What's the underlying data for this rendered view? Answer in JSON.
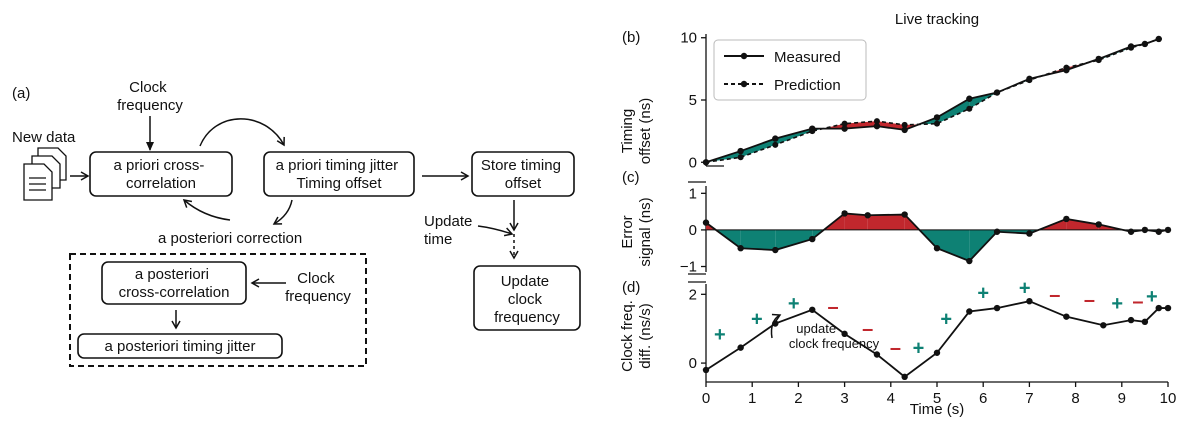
{
  "diagram": {
    "panel_label": "(a)",
    "new_data_label": "New data",
    "clock_frequency_top": [
      "Clock",
      "frequency"
    ],
    "a_priori_cross": [
      "a priori cross-",
      "correlation"
    ],
    "a_priori_jitter": [
      "a priori timing jitter",
      "Timing offset"
    ],
    "store_timing": [
      "Store timing",
      "offset"
    ],
    "a_posteriori_correction": "a posteriori correction",
    "update_time": [
      "Update",
      "time"
    ],
    "update_clock": [
      "Update",
      "clock",
      "frequency"
    ],
    "a_posteriori_cross": [
      "a posteriori",
      "cross-correlation"
    ],
    "clock_frequency_inner": [
      "Clock",
      "frequency"
    ],
    "a_posteriori_jitter": "a posteriori timing jitter"
  },
  "chart_data": [
    {
      "type": "line",
      "panel_label": "(b)",
      "title": "Live tracking",
      "ylabel": [
        "Timing",
        "offset (ns)"
      ],
      "xlim": [
        0,
        10
      ],
      "ylim": [
        -0.3,
        10.3
      ],
      "yticks": [
        0,
        5,
        10
      ],
      "legend": "top-left",
      "series": [
        {
          "name": "Measured",
          "style": "solid",
          "x": [
            0,
            0.75,
            1.5,
            2.3,
            3.0,
            3.7,
            4.3,
            5.0,
            5.7,
            6.3,
            7.0,
            7.8,
            8.5,
            9.2,
            9.5,
            9.8
          ],
          "y": [
            0,
            0.9,
            1.9,
            2.7,
            2.7,
            2.9,
            2.6,
            3.6,
            5.1,
            5.6,
            6.7,
            7.4,
            8.3,
            9.3,
            9.5,
            9.9
          ]
        },
        {
          "name": "Prediction",
          "style": "dashed",
          "x": [
            0,
            0.75,
            1.5,
            2.3,
            3.0,
            3.7,
            4.3,
            5.0,
            5.7,
            6.3,
            7.0,
            7.8,
            8.5,
            9.2,
            9.5,
            9.8
          ],
          "y": [
            0,
            0.4,
            1.4,
            2.5,
            3.1,
            3.3,
            3.0,
            3.1,
            4.3,
            5.6,
            6.6,
            7.6,
            8.2,
            9.2,
            9.5,
            9.9
          ]
        }
      ],
      "fill_colors": {
        "positive": "#c1272d",
        "negative": "#0e8174"
      }
    },
    {
      "type": "line",
      "panel_label": "(c)",
      "ylabel": [
        "Error",
        "signal (ns)"
      ],
      "xlim": [
        0,
        10
      ],
      "ylim": [
        -1.15,
        1.2
      ],
      "yticks": [
        -1,
        0,
        1
      ],
      "x": [
        0,
        0.75,
        1.5,
        2.3,
        3.0,
        3.5,
        4.3,
        5.0,
        5.7,
        6.3,
        7.0,
        7.8,
        8.5,
        9.2,
        9.5,
        9.8,
        10
      ],
      "y": [
        0.2,
        -0.5,
        -0.55,
        -0.25,
        0.45,
        0.4,
        0.42,
        -0.5,
        -0.85,
        -0.05,
        -0.1,
        0.3,
        0.15,
        -0.05,
        0.0,
        -0.05,
        0.0
      ],
      "fill_colors": {
        "positive": "#c1272d",
        "negative": "#0e8174"
      }
    },
    {
      "type": "line",
      "panel_label": "(d)",
      "ylabel": [
        "Clock freq.",
        "diff. (ns/s)"
      ],
      "xlabel": "Time (s)",
      "xlim": [
        0,
        10
      ],
      "ylim": [
        -0.55,
        2.3
      ],
      "yticks": [
        0,
        2
      ],
      "xticks": [
        0,
        1,
        2,
        3,
        4,
        5,
        6,
        7,
        8,
        9,
        10
      ],
      "x": [
        0,
        0.75,
        1.5,
        2.3,
        3.0,
        3.7,
        4.3,
        5.0,
        5.7,
        6.3,
        7.0,
        7.8,
        8.6,
        9.2,
        9.5,
        9.8,
        10
      ],
      "y": [
        -0.2,
        0.45,
        1.15,
        1.55,
        0.85,
        0.25,
        -0.4,
        0.3,
        1.5,
        1.6,
        1.8,
        1.35,
        1.1,
        1.25,
        1.2,
        1.6,
        1.6
      ],
      "annotation": [
        "update",
        "clock frequency"
      ],
      "markers": [
        {
          "sign": "+",
          "x": 0.3,
          "y": 0.85
        },
        {
          "sign": "+",
          "x": 1.1,
          "y": 1.3
        },
        {
          "sign": "+",
          "x": 1.9,
          "y": 1.75
        },
        {
          "sign": "-",
          "x": 2.75,
          "y": 1.65
        },
        {
          "sign": "-",
          "x": 3.5,
          "y": 1.0
        },
        {
          "sign": "-",
          "x": 4.1,
          "y": 0.45
        },
        {
          "sign": "+",
          "x": 4.6,
          "y": 0.45
        },
        {
          "sign": "+",
          "x": 5.2,
          "y": 1.3
        },
        {
          "sign": "+",
          "x": 6.0,
          "y": 2.05
        },
        {
          "sign": "+",
          "x": 6.9,
          "y": 2.2
        },
        {
          "sign": "-",
          "x": 7.55,
          "y": 2.0
        },
        {
          "sign": "-",
          "x": 8.3,
          "y": 1.85
        },
        {
          "sign": "+",
          "x": 8.9,
          "y": 1.75
        },
        {
          "sign": "-",
          "x": 9.35,
          "y": 1.8
        },
        {
          "sign": "+",
          "x": 9.65,
          "y": 1.95
        }
      ]
    }
  ]
}
